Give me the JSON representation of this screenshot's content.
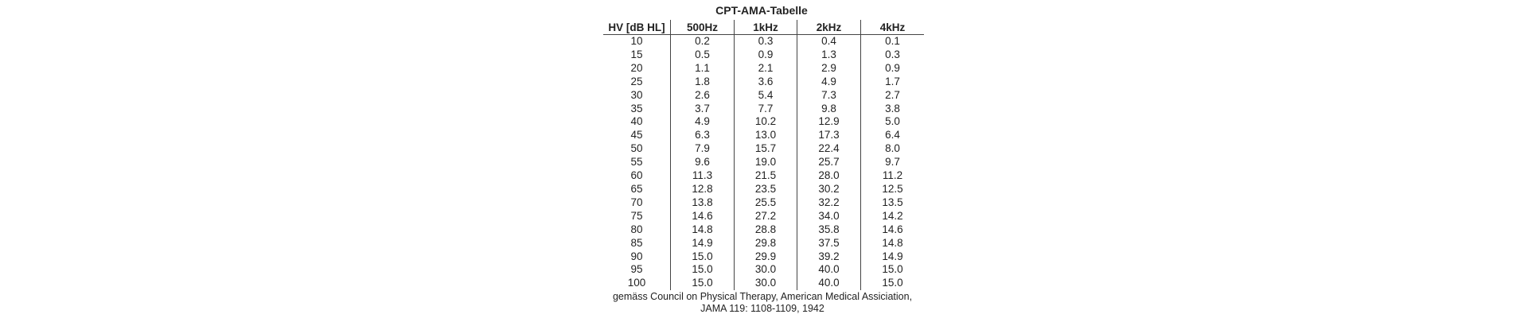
{
  "title": "CPT-AMA-Tabelle",
  "headers": [
    "HV [dB HL]",
    "500Hz",
    "1kHz",
    "2kHz",
    "4kHz"
  ],
  "rows": [
    [
      "10",
      "0.2",
      "0.3",
      "0.4",
      "0.1"
    ],
    [
      "15",
      "0.5",
      "0.9",
      "1.3",
      "0.3"
    ],
    [
      "20",
      "1.1",
      "2.1",
      "2.9",
      "0.9"
    ],
    [
      "25",
      "1.8",
      "3.6",
      "4.9",
      "1.7"
    ],
    [
      "30",
      "2.6",
      "5.4",
      "7.3",
      "2.7"
    ],
    [
      "35",
      "3.7",
      "7.7",
      "9.8",
      "3.8"
    ],
    [
      "40",
      "4.9",
      "10.2",
      "12.9",
      "5.0"
    ],
    [
      "45",
      "6.3",
      "13.0",
      "17.3",
      "6.4"
    ],
    [
      "50",
      "7.9",
      "15.7",
      "22.4",
      "8.0"
    ],
    [
      "55",
      "9.6",
      "19.0",
      "25.7",
      "9.7"
    ],
    [
      "60",
      "11.3",
      "21.5",
      "28.0",
      "11.2"
    ],
    [
      "65",
      "12.8",
      "23.5",
      "30.2",
      "12.5"
    ],
    [
      "70",
      "13.8",
      "25.5",
      "32.2",
      "13.5"
    ],
    [
      "75",
      "14.6",
      "27.2",
      "34.0",
      "14.2"
    ],
    [
      "80",
      "14.8",
      "28.8",
      "35.8",
      "14.6"
    ],
    [
      "85",
      "14.9",
      "29.8",
      "37.5",
      "14.8"
    ],
    [
      "90",
      "15.0",
      "29.9",
      "39.2",
      "14.9"
    ],
    [
      "95",
      "15.0",
      "30.0",
      "40.0",
      "15.0"
    ],
    [
      "100",
      "15.0",
      "30.0",
      "40.0",
      "15.0"
    ]
  ],
  "footer": {
    "line1": "gemäss Council on Physical Therapy, American Medical Assiciation,",
    "line2": "JAMA 119: 1108-1109, 1942"
  }
}
